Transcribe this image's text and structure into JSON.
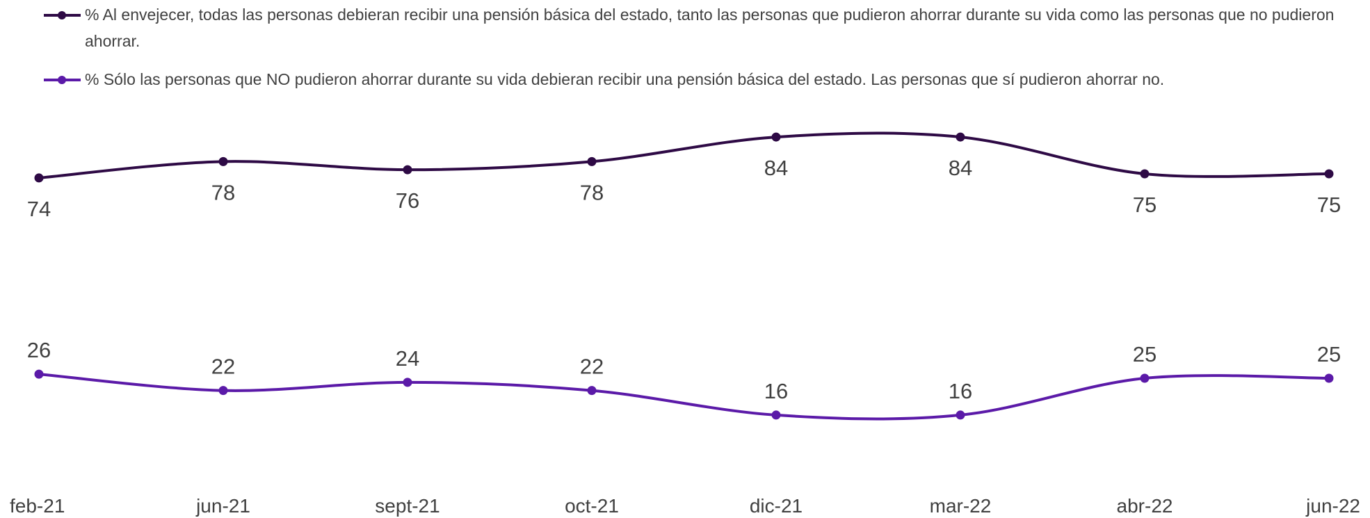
{
  "chart_data": {
    "type": "line",
    "categories": [
      "feb-21",
      "jun-21",
      "sept-21",
      "oct-21",
      "dic-21",
      "mar-22",
      "abr-22",
      "jun-22"
    ],
    "series": [
      {
        "name": "% Al envejecer, todas las personas debieran recibir una pensión básica del estado, tanto las personas que pudieron ahorrar durante su vida como las personas que no pudieron ahorrar.",
        "color": "#2e0a45",
        "values": [
          74,
          78,
          76,
          78,
          84,
          84,
          75,
          75
        ]
      },
      {
        "name": "% Sólo las personas que NO pudieron ahorrar durante su vida debieran recibir una pensión básica del estado. Las personas que sí pudieron ahorrar no.",
        "color": "#5b1aa8",
        "values": [
          26,
          22,
          24,
          22,
          16,
          16,
          25,
          25
        ]
      }
    ],
    "ylim": [
      0,
      100
    ]
  }
}
